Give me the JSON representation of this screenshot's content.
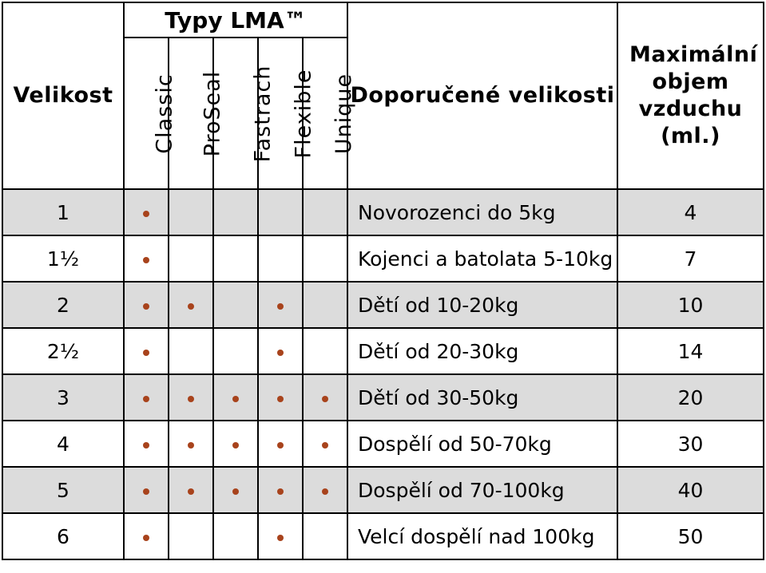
{
  "header": {
    "size_label": "Velikost",
    "group_label": "Typy LMA™",
    "types": [
      "Classic",
      "ProSeal",
      "Fastrach",
      "Flexible",
      "Unique"
    ],
    "recommended_label": "Doporučené velikosti",
    "max_volume_label": "Maximální objem vzduchu (ml.)"
  },
  "colors": {
    "dot": "#a8431c",
    "shaded_row": "#dcdcdc"
  },
  "rows": [
    {
      "size": "1",
      "types": [
        true,
        false,
        false,
        false,
        false
      ],
      "recommended": "Novorozenci do 5kg",
      "volume": "4"
    },
    {
      "size": "1½",
      "types": [
        true,
        false,
        false,
        false,
        false
      ],
      "recommended": "Kojenci a batolata 5-10kg",
      "volume": "7"
    },
    {
      "size": "2",
      "types": [
        true,
        true,
        false,
        true,
        false
      ],
      "recommended": "Dětí od 10-20kg",
      "volume": "10"
    },
    {
      "size": "2½",
      "types": [
        true,
        false,
        false,
        true,
        false
      ],
      "recommended": "Dětí od 20-30kg",
      "volume": "14"
    },
    {
      "size": "3",
      "types": [
        true,
        true,
        true,
        true,
        true
      ],
      "recommended": "Dětí od 30-50kg",
      "volume": "20"
    },
    {
      "size": "4",
      "types": [
        true,
        true,
        true,
        true,
        true
      ],
      "recommended": "Dospělí od 50-70kg",
      "volume": "30"
    },
    {
      "size": "5",
      "types": [
        true,
        true,
        true,
        true,
        true
      ],
      "recommended": "Dospělí od 70-100kg",
      "volume": "40"
    },
    {
      "size": "6",
      "types": [
        true,
        false,
        false,
        true,
        false
      ],
      "recommended": "Velcí dospělí nad 100kg",
      "volume": "50"
    }
  ]
}
